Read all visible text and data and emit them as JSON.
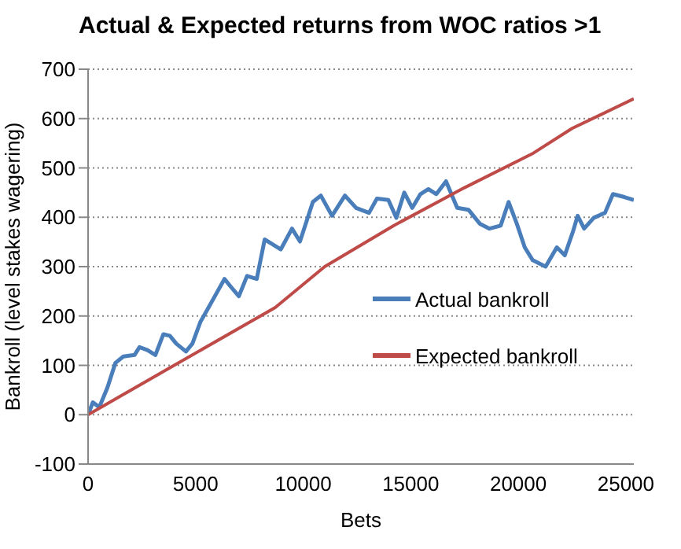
{
  "chart_data": {
    "type": "line",
    "title": "Actual & Expected returns from WOC ratios >1",
    "xlabel": "Bets",
    "ylabel": "Bankroll (level stakes wagering)",
    "xlim": [
      0,
      25370
    ],
    "xticks": [
      0,
      5000,
      10000,
      15000,
      20000,
      25000
    ],
    "ylim": [
      -100,
      700
    ],
    "yticks": [
      -100,
      0,
      100,
      200,
      300,
      400,
      500,
      600,
      700
    ],
    "grid": "y",
    "legend": "right",
    "marker": "none",
    "line_style": "solid",
    "series": [
      {
        "name": "Actual bankroll",
        "color": "#4a7ebb",
        "x": [
          0,
          220,
          520,
          900,
          1270,
          1640,
          2160,
          2390,
          2760,
          3130,
          3500,
          3800,
          4100,
          4550,
          4850,
          5220,
          5600,
          5970,
          6340,
          6640,
          7010,
          7390,
          7840,
          8210,
          8960,
          9480,
          9850,
          10450,
          10820,
          11340,
          11940,
          12460,
          13060,
          13430,
          13960,
          14330,
          14700,
          15070,
          15450,
          15820,
          16190,
          16640,
          17160,
          17690,
          18210,
          18660,
          19180,
          19550,
          19930,
          20300,
          20670,
          21270,
          21790,
          22160,
          22540,
          22760,
          23060,
          23510,
          24030,
          24400,
          24930,
          25370
        ],
        "values": [
          0,
          25,
          15,
          55,
          105,
          118,
          121,
          137,
          131,
          121,
          163,
          160,
          144,
          128,
          144,
          188,
          217,
          246,
          275,
          259,
          240,
          281,
          275,
          355,
          335,
          377,
          351,
          431,
          444,
          403,
          444,
          419,
          409,
          438,
          435,
          399,
          450,
          419,
          447,
          457,
          447,
          473,
          419,
          415,
          387,
          377,
          383,
          431,
          387,
          339,
          313,
          300,
          339,
          323,
          371,
          403,
          377,
          399,
          409,
          447,
          441,
          435
        ]
      },
      {
        "name": "Expected bankroll",
        "color": "#be4b48",
        "x": [
          0,
          4000,
          8700,
          11000,
          14200,
          17500,
          20700,
          22500,
          25370
        ],
        "values": [
          0,
          100,
          217,
          300,
          383,
          460,
          530,
          580,
          640
        ]
      }
    ]
  }
}
